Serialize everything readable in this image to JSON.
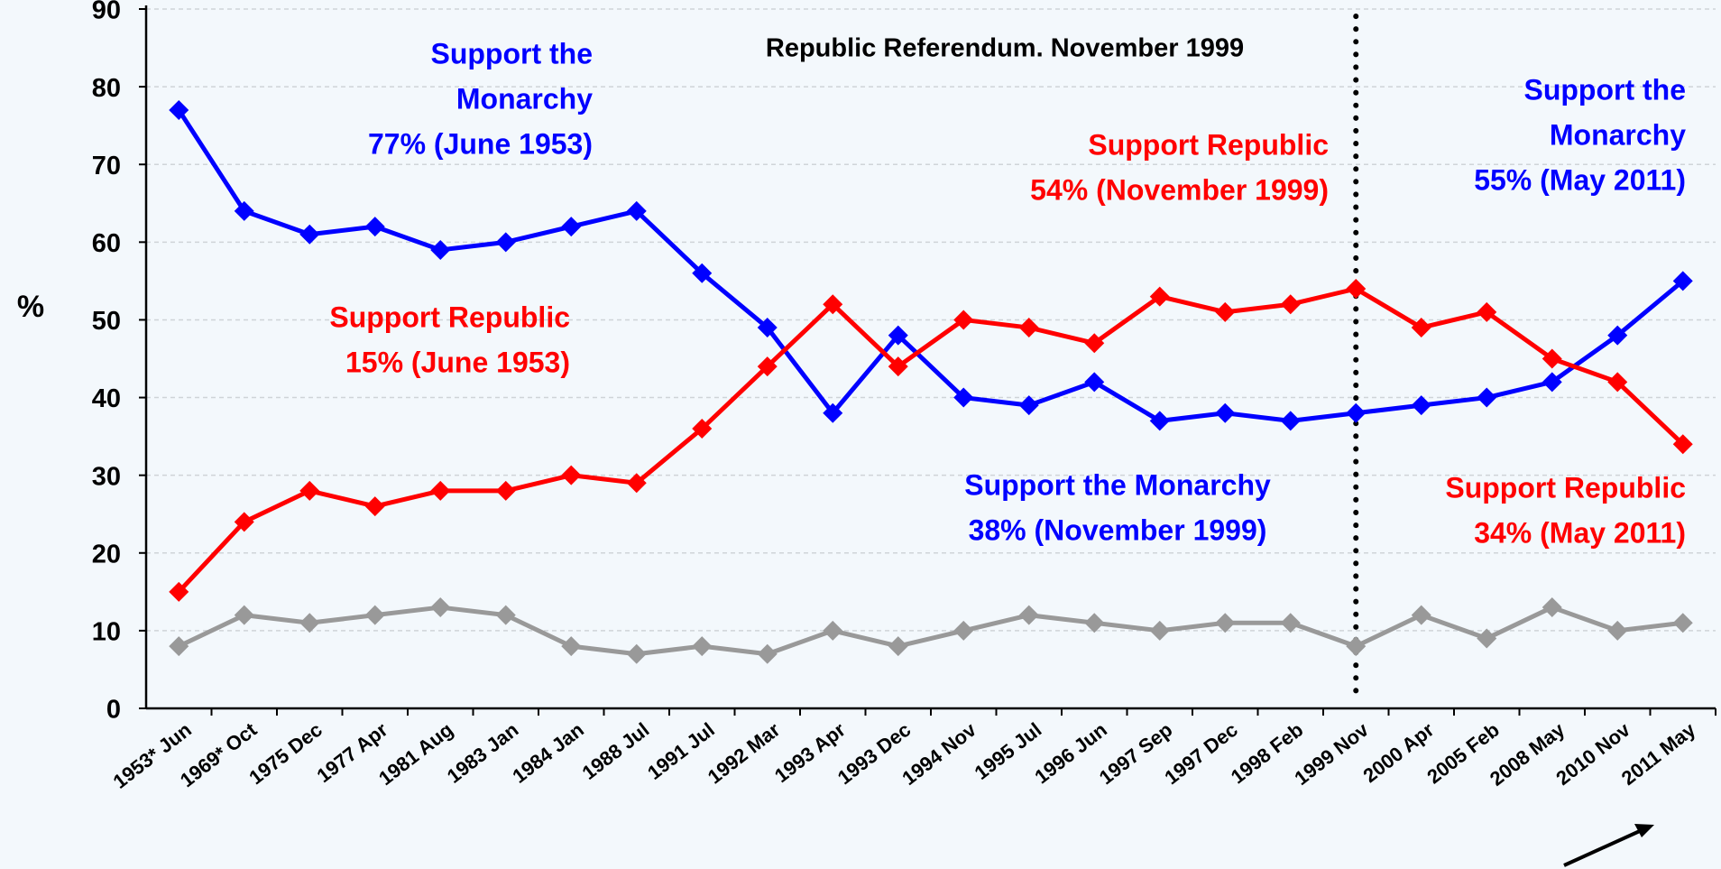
{
  "chart_data": {
    "type": "line",
    "categories": [
      "1953* Jun",
      "1969* Oct",
      "1975 Dec",
      "1977 Apr",
      "1981 Aug",
      "1983 Jan",
      "1984 Jan",
      "1988 Jul",
      "1991 Jul",
      "1992 Mar",
      "1993 Apr",
      "1993 Dec",
      "1994 Nov",
      "1995 Jul",
      "1996 Jun",
      "1997 Sep",
      "1997 Dec",
      "1998 Feb",
      "1999 Nov",
      "2000 Apr",
      "2005 Feb",
      "2008 May",
      "2010 Nov",
      "2011 May"
    ],
    "series": [
      {
        "color": "#0000ff",
        "values": [
          77,
          64,
          61,
          62,
          59,
          60,
          62,
          64,
          56,
          49,
          38,
          48,
          40,
          39,
          42,
          37,
          38,
          37,
          38,
          39,
          40,
          42,
          48,
          55
        ]
      },
      {
        "color": "#ff0000",
        "values": [
          15,
          24,
          28,
          26,
          28,
          28,
          30,
          29,
          36,
          44,
          52,
          44,
          50,
          49,
          47,
          53,
          51,
          52,
          54,
          49,
          51,
          45,
          42,
          34
        ]
      },
      {
        "color": "#999999",
        "values": [
          8,
          12,
          11,
          12,
          13,
          12,
          8,
          7,
          8,
          7,
          10,
          8,
          10,
          12,
          11,
          10,
          11,
          11,
          8,
          12,
          9,
          13,
          10,
          11
        ]
      }
    ],
    "ylabel": "%",
    "ylim": [
      0,
      90
    ],
    "yticks": [
      0,
      10,
      20,
      30,
      40,
      50,
      60,
      70,
      80,
      90
    ],
    "grid": true,
    "annotations": [
      {
        "text": "Republic Referendum. November 1999",
        "color": "#000000"
      },
      {
        "lines": [
          "Support the",
          "Monarchy",
          "77% (June 1953)"
        ],
        "color": "#0000ff"
      },
      {
        "lines": [
          "Support Republic",
          "15% (June 1953)"
        ],
        "color": "#ff0000"
      },
      {
        "lines": [
          "Support Republic",
          "54% (November 1999)"
        ],
        "color": "#ff0000"
      },
      {
        "lines": [
          "Support the",
          "Monarchy",
          "55% (May 2011)"
        ],
        "color": "#0000ff"
      },
      {
        "lines": [
          "Support the Monarchy",
          "38% (November 1999)"
        ],
        "color": "#0000ff"
      },
      {
        "lines": [
          "Support Republic",
          "34% (May 2011)"
        ],
        "color": "#ff0000"
      }
    ]
  }
}
